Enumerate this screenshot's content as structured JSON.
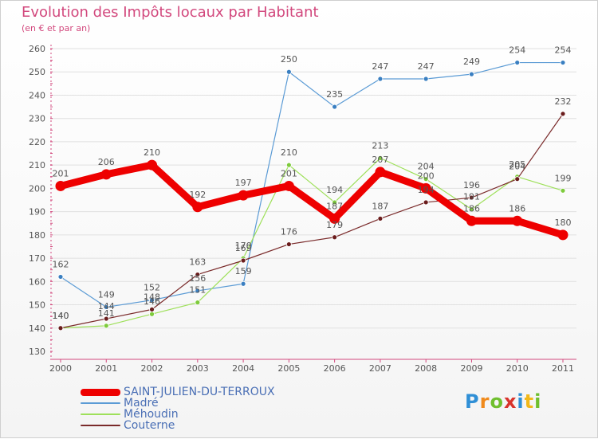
{
  "title": "Evolution des Impôts locaux par Habitant",
  "subtitle": "(en € et par an)",
  "colors": {
    "title": "#d2487d",
    "axis": "#d2487d",
    "grid": "#e0e0e0",
    "label": "#555555"
  },
  "logo": {
    "letters": [
      "P",
      "r",
      "o",
      "x",
      "i",
      "t",
      "i"
    ],
    "colors": [
      "#2f8fd6",
      "#f08a1c",
      "#6fbf2e",
      "#d8342c",
      "#2f8fd6",
      "#f2b81a",
      "#6fbf2e"
    ]
  },
  "chart_data": {
    "type": "line",
    "title": "Evolution des Impôts locaux par Habitant",
    "subtitle": "(en € et par an)",
    "xlabel": "",
    "ylabel": "",
    "x": [
      "2000",
      "2001",
      "2002",
      "2003",
      "2004",
      "2005",
      "2006",
      "2007",
      "2008",
      "2009",
      "2010",
      "2011"
    ],
    "ylim": [
      130,
      260
    ],
    "yticks": [
      130,
      140,
      150,
      160,
      170,
      180,
      190,
      200,
      210,
      220,
      230,
      240,
      250,
      260
    ],
    "grid": "horizontal",
    "series": [
      {
        "name": "SAINT-JULIEN-DU-TERROUX",
        "color": "#ee0000",
        "marker": "#ee0000",
        "values": [
          201,
          206,
          210,
          192,
          197,
          201,
          187,
          207,
          200,
          186,
          186,
          180
        ],
        "labels": [
          "201",
          "206",
          "210",
          "192",
          "197",
          "201",
          "187",
          "207",
          "200",
          "186",
          "186",
          "180"
        ]
      },
      {
        "name": "Madré",
        "color": "#5b9bd5",
        "marker": "#3a7fc1",
        "values": [
          162,
          149,
          152,
          156,
          159,
          250,
          235,
          247,
          247,
          249,
          254,
          254
        ],
        "labels": [
          "162",
          "149",
          "152",
          "156",
          "159",
          "250",
          "235",
          "247",
          "247",
          "249",
          "254",
          "254"
        ]
      },
      {
        "name": "Méhoudin",
        "color": "#9ee05a",
        "marker": "#7ecb3c",
        "values": [
          140,
          141,
          146,
          151,
          170,
          210,
          194,
          213,
          204,
          191,
          205,
          199
        ],
        "labels": [
          "140",
          "141",
          "146",
          "151",
          "170",
          "210",
          "194",
          "213",
          "204",
          "191",
          "205",
          "199"
        ]
      },
      {
        "name": "Couterne",
        "color": "#7a2a2a",
        "marker": "#6a1c1c",
        "values": [
          140,
          144,
          148,
          163,
          169,
          176,
          179,
          187,
          194,
          196,
          204,
          232
        ],
        "labels": [
          "140",
          "144",
          "148",
          "163",
          "169",
          "176",
          "179",
          "187",
          "194",
          "196",
          "204",
          "232"
        ]
      }
    ],
    "legend": "bottom-left"
  }
}
